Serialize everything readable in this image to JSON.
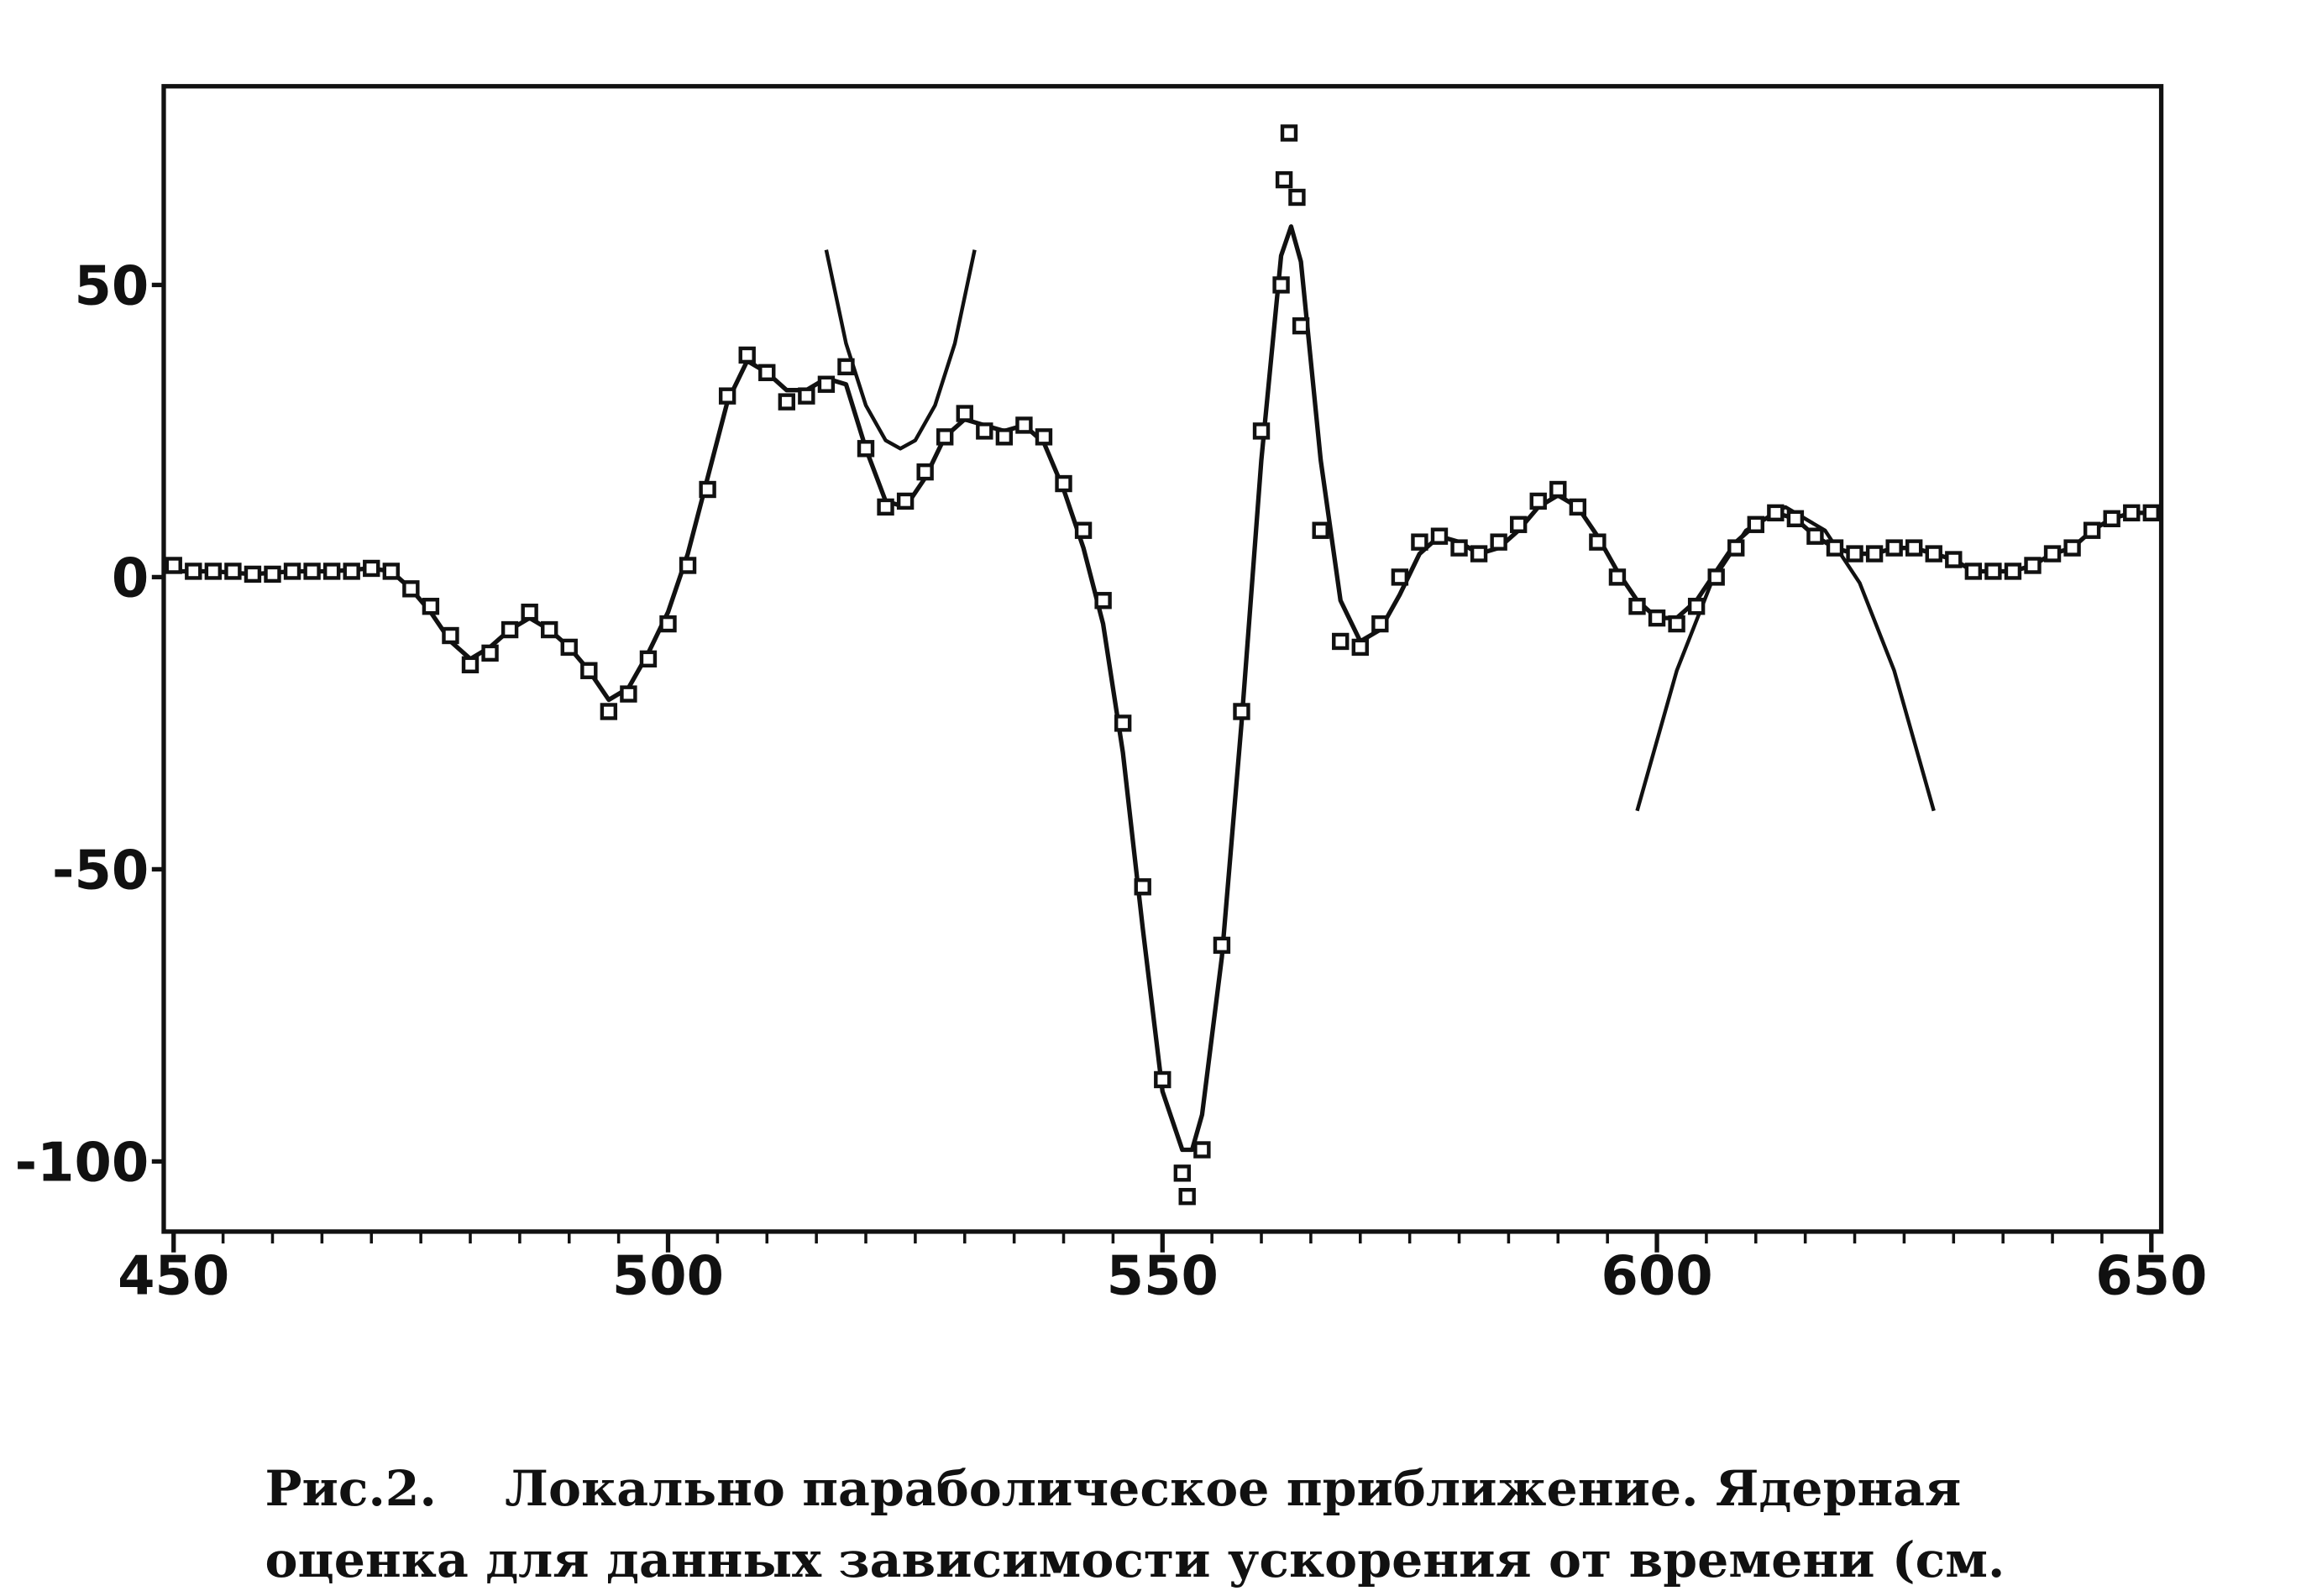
{
  "chart_data": {
    "type": "scatter",
    "xlim": [
      449,
      651
    ],
    "ylim": [
      -112,
      84
    ],
    "xticks": [
      450,
      500,
      550,
      600,
      650
    ],
    "yticks": [
      50,
      0,
      -50,
      -100
    ],
    "xticks_minor": [
      455,
      460,
      465,
      470,
      475,
      480,
      485,
      490,
      495,
      505,
      510,
      515,
      520,
      525,
      530,
      535,
      540,
      545,
      555,
      560,
      565,
      570,
      575,
      580,
      585,
      590,
      595,
      605,
      610,
      615,
      620,
      625,
      630,
      635,
      640,
      645
    ],
    "color": "#111111",
    "points": {
      "x": [
        450,
        452,
        454,
        456,
        458,
        460,
        462,
        464,
        466,
        468,
        470,
        472,
        474,
        476,
        478,
        480,
        482,
        484,
        486,
        488,
        490,
        492,
        494,
        496,
        498,
        500,
        502,
        504,
        506,
        508,
        510,
        512,
        514,
        516,
        518,
        520,
        522,
        524,
        526,
        528,
        530,
        532,
        534,
        536,
        538,
        540,
        542,
        544,
        546,
        548,
        550,
        552,
        552.5,
        554,
        556,
        558,
        560,
        562,
        562.3,
        562.8,
        563.6,
        564,
        566,
        568,
        570,
        572,
        574,
        576,
        578,
        580,
        582,
        584,
        586,
        588,
        590,
        592,
        594,
        596,
        598,
        600,
        602,
        604,
        606,
        608,
        610,
        612,
        614,
        616,
        618,
        620,
        622,
        624,
        626,
        628,
        630,
        632,
        634,
        636,
        638,
        640,
        642,
        644,
        646,
        648,
        650
      ],
      "y": [
        2,
        1,
        1,
        1,
        0.5,
        0.5,
        1,
        1,
        1,
        1,
        1.5,
        1,
        -2,
        -5,
        -10,
        -15,
        -13,
        -9,
        -6,
        -9,
        -12,
        -16,
        -23,
        -20,
        -14,
        -8,
        2,
        15,
        31,
        38,
        35,
        30,
        31,
        33,
        36,
        22,
        12,
        13,
        18,
        24,
        28,
        25,
        24,
        26,
        24,
        16,
        8,
        -4,
        -25,
        -53,
        -86,
        -102,
        -106,
        -98,
        -63,
        -23,
        25,
        50,
        68,
        76,
        65,
        43,
        8,
        -11,
        -12,
        -8,
        0,
        6,
        7,
        5,
        4,
        6,
        9,
        13,
        15,
        12,
        6,
        0,
        -5,
        -7,
        -8,
        -5,
        0,
        5,
        9,
        11,
        10,
        7,
        5,
        4,
        4,
        5,
        5,
        4,
        3,
        1,
        1,
        1,
        2,
        4,
        5,
        8,
        10,
        11,
        11
      ]
    },
    "fit": {
      "x": [
        450,
        454,
        458,
        462,
        466,
        470,
        472,
        474,
        476,
        478,
        480,
        482,
        484,
        486,
        488,
        490,
        492,
        494,
        496,
        498,
        500,
        502,
        504,
        506,
        508,
        510,
        512,
        514,
        516,
        518,
        520,
        522,
        524,
        526,
        528,
        530,
        532,
        534,
        536,
        538,
        540,
        542,
        544,
        546,
        548,
        550,
        552,
        553,
        554,
        556,
        558,
        560,
        562,
        563,
        564,
        566,
        568,
        570,
        572,
        574,
        576,
        578,
        580,
        582,
        584,
        586,
        588,
        590,
        592,
        594,
        596,
        598,
        600,
        602,
        604,
        606,
        608,
        610,
        612,
        614,
        616,
        618,
        620,
        622,
        624,
        626,
        628,
        630,
        632,
        634,
        636,
        638,
        640,
        642,
        644,
        646,
        648,
        650
      ],
      "y": [
        1,
        1,
        0.5,
        1,
        1,
        1.5,
        1,
        -2,
        -6,
        -11,
        -14,
        -12,
        -9,
        -7,
        -9,
        -12,
        -16,
        -21,
        -19,
        -13,
        -6,
        4,
        17,
        30,
        37,
        35,
        32,
        32,
        34,
        33,
        22,
        13,
        12,
        17,
        24,
        27,
        26,
        25,
        26,
        23,
        15,
        5,
        -8,
        -30,
        -60,
        -88,
        -98,
        -98,
        -92,
        -65,
        -25,
        20,
        55,
        60,
        54,
        20,
        -4,
        -11,
        -9,
        -3,
        4,
        7,
        6,
        4,
        5,
        8,
        12,
        14,
        12,
        7,
        1,
        -4,
        -7,
        -7,
        -4,
        1,
        6,
        9,
        11,
        10,
        7,
        5,
        4,
        4,
        5,
        5,
        4,
        3,
        1,
        1,
        1,
        2,
        4,
        5,
        8,
        10,
        11,
        11
      ]
    },
    "local_fits": [
      {
        "x": [
          516,
          518,
          520,
          522,
          523.5,
          525,
          527,
          529,
          531
        ],
        "y": [
          56,
          40,
          29.4,
          23.4,
          22,
          23.4,
          29.4,
          40,
          56
        ]
      },
      {
        "x": [
          598,
          602,
          605.5,
          609,
          613,
          617,
          620.5,
          624,
          628
        ],
        "y": [
          -40,
          -16,
          -1,
          8,
          12,
          8,
          -1,
          -16,
          -40
        ]
      }
    ]
  },
  "caption": [
    "Рис.2.    Локально параболическое приближение. Ядерная",
    "оценка для данных зависимости ускорения от времени (см."
  ]
}
